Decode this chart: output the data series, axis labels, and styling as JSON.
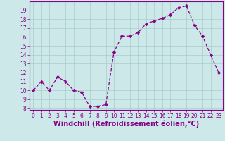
{
  "x": [
    0,
    1,
    2,
    3,
    4,
    5,
    6,
    7,
    8,
    9,
    10,
    11,
    12,
    13,
    14,
    15,
    16,
    17,
    18,
    19,
    20,
    21,
    22,
    23
  ],
  "y": [
    10,
    11,
    10,
    11.5,
    11,
    10,
    9.8,
    8.2,
    8.2,
    8.4,
    14.3,
    16.1,
    16.1,
    16.5,
    17.5,
    17.8,
    18.1,
    18.5,
    19.3,
    19.5,
    17.3,
    16.1,
    14.0,
    12.0
  ],
  "xlabel": "Windchill (Refroidissement éolien,°C)",
  "line_color": "#880088",
  "marker_color": "#880088",
  "bg_color": "#cce8e8",
  "grid_color": "#aacccc",
  "ylim": [
    7.8,
    20.0
  ],
  "xlim": [
    -0.5,
    23.5
  ],
  "yticks": [
    8,
    9,
    10,
    11,
    12,
    13,
    14,
    15,
    16,
    17,
    18,
    19
  ],
  "xticks": [
    0,
    1,
    2,
    3,
    4,
    5,
    6,
    7,
    8,
    9,
    10,
    11,
    12,
    13,
    14,
    15,
    16,
    17,
    18,
    19,
    20,
    21,
    22,
    23
  ],
  "tick_fontsize": 5.5,
  "xlabel_fontsize": 7.0
}
